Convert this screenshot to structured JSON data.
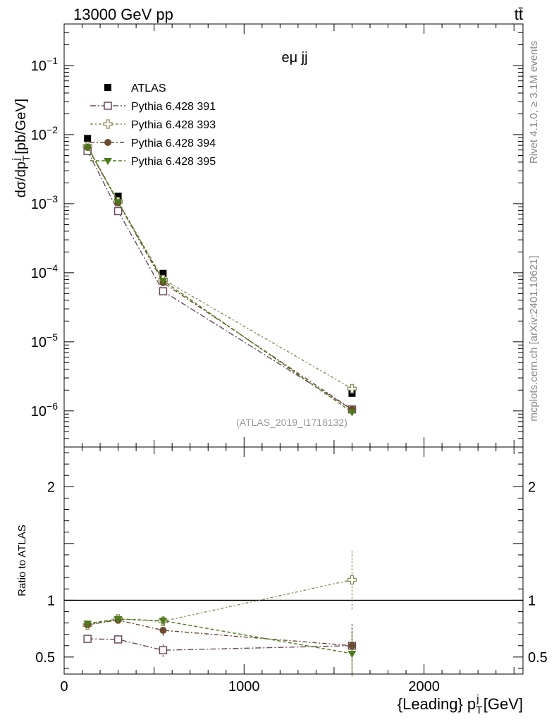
{
  "header": {
    "energy_label": "13000 GeV pp",
    "process_label": "tt̄",
    "channel_label": "eμ jj",
    "analysis_label": "(ATLAS_2019_I1718132)",
    "rivet_label": "Rivet 4.1.0, ≥ 3.1M events",
    "source_label": "mcplots.cern.ch [arXiv:2401.10621]"
  },
  "colors": {
    "atlas": "#000000",
    "py391": "#6b4a5e",
    "py393": "#8a8a5c",
    "py394": "#6b4a30",
    "py395": "#4d7a1a"
  },
  "chart_data": {
    "type": "scatter",
    "xlabel": "{Leading} p_T^j [GeV]",
    "ylabel_main": "dσ/dp_T^j [pb/GeV]",
    "ylabel_ratio": "Ratio to ATLAS",
    "xlim": [
      0,
      2550
    ],
    "ylim_main": [
      3e-07,
      0.4
    ],
    "yscale_main": "log",
    "ylim_ratio": [
      0.35,
      2.35
    ],
    "x_ticks": [
      0,
      1000,
      2000
    ],
    "x_tick_labels": [
      "0",
      "1000",
      "2000"
    ],
    "main_ticks": [
      1e-06,
      1e-05,
      0.0001,
      0.001,
      0.01,
      0.1
    ],
    "main_tick_labels": [
      {
        "base": "10",
        "exp": "−6"
      },
      {
        "base": "10",
        "exp": "−5"
      },
      {
        "base": "10",
        "exp": "−4"
      },
      {
        "base": "10",
        "exp": "−3"
      },
      {
        "base": "10",
        "exp": "−2"
      },
      {
        "base": "10",
        "exp": "−1"
      }
    ],
    "ratio_ticks": [
      0.5,
      1,
      2
    ],
    "ratio_tick_labels": [
      "0.5",
      "1",
      "2"
    ],
    "x": [
      130,
      300,
      550,
      1600
    ],
    "x_err": [
      [
        130,
        130
      ],
      [
        300,
        300
      ],
      [
        550,
        550
      ],
      [
        1600,
        1600
      ]
    ],
    "series": [
      {
        "name": "ATLAS",
        "key": "atlas",
        "marker": "square-filled",
        "line": false,
        "values": [
          0.0088,
          0.00128,
          9.8e-05,
          1.8e-06
        ],
        "ratio": [
          1,
          1,
          1,
          1
        ],
        "ratio_err": [
          0,
          0,
          0,
          0
        ]
      },
      {
        "name": "Pythia 6.428 391",
        "key": "py391",
        "marker": "square-open",
        "line": true,
        "values": [
          0.0058,
          0.00078,
          5.4e-05,
          1.05e-06
        ],
        "ratio": [
          0.66,
          0.655,
          0.56,
          0.6
        ],
        "ratio_err": [
          0.01,
          0.01,
          0.06,
          0.2
        ]
      },
      {
        "name": "Pythia 6.428 393",
        "key": "py393",
        "marker": "cross-open",
        "line": true,
        "values": [
          0.0068,
          0.00107,
          8e-05,
          2.1e-06
        ],
        "ratio": [
          0.78,
          0.835,
          0.815,
          1.18
        ],
        "ratio_err": [
          0.01,
          0.01,
          0.04,
          0.26
        ]
      },
      {
        "name": "Pythia 6.428 394",
        "key": "py394",
        "marker": "circle-filled",
        "line": true,
        "values": [
          0.0066,
          0.00104,
          7.2e-05,
          1.05e-06
        ],
        "ratio": [
          0.785,
          0.825,
          0.735,
          0.6
        ],
        "ratio_err": [
          0.01,
          0.01,
          0.05,
          0.17
        ]
      },
      {
        "name": "Pythia 6.428 395",
        "key": "py395",
        "marker": "triangle-down",
        "line": true,
        "values": [
          0.0066,
          0.00106,
          7.7e-05,
          9.6e-07
        ],
        "ratio": [
          0.795,
          0.835,
          0.82,
          0.53
        ],
        "ratio_err": [
          0.01,
          0.01,
          0.04,
          0.2
        ]
      }
    ]
  }
}
